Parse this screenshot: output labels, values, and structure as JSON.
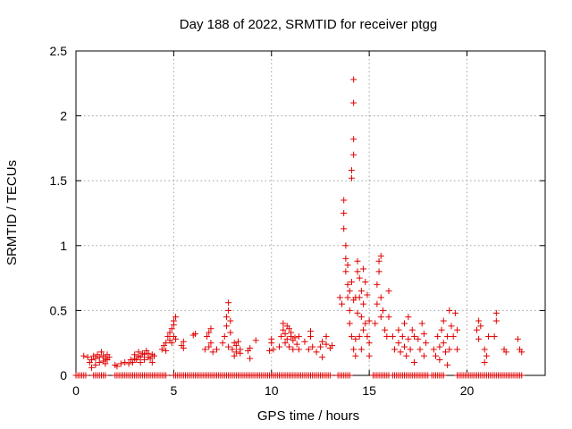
{
  "chart_data": {
    "type": "scatter",
    "title": "Day 188 of 2022, SRMTID for receiver ptgg",
    "xlabel": "GPS time / hours",
    "ylabel": "SRMTID / TECUs",
    "xlim": [
      0,
      24
    ],
    "ylim": [
      0,
      2.5
    ],
    "xticks": [
      0,
      5,
      10,
      15,
      20
    ],
    "yticks": [
      0,
      0.5,
      1,
      1.5,
      2,
      2.5
    ],
    "xtick_labels": [
      "0",
      "5",
      "10",
      "15",
      "20"
    ],
    "ytick_labels": [
      "0",
      "0.5",
      "1",
      "1.5",
      "2",
      "2.5"
    ],
    "grid": true,
    "marker": "+",
    "marker_color": "#e00000",
    "series": [
      {
        "name": "SRMTID",
        "points": [
          [
            0.4,
            0.15
          ],
          [
            0.6,
            0.14
          ],
          [
            0.7,
            0.1
          ],
          [
            0.8,
            0.06
          ],
          [
            0.8,
            0.12
          ],
          [
            0.9,
            0.15
          ],
          [
            1.0,
            0.08
          ],
          [
            1.0,
            0.13
          ],
          [
            1.1,
            0.16
          ],
          [
            1.2,
            0.1
          ],
          [
            1.2,
            0.14
          ],
          [
            1.3,
            0.18
          ],
          [
            1.4,
            0.11
          ],
          [
            1.4,
            0.15
          ],
          [
            1.5,
            0.09
          ],
          [
            1.5,
            0.13
          ],
          [
            1.6,
            0.12
          ],
          [
            1.6,
            0.16
          ],
          [
            1.7,
            0.14
          ],
          [
            2.0,
            0.08
          ],
          [
            2.1,
            0.07
          ],
          [
            2.3,
            0.09
          ],
          [
            2.5,
            0.1
          ],
          [
            2.7,
            0.09
          ],
          [
            2.8,
            0.12
          ],
          [
            2.9,
            0.1
          ],
          [
            3.0,
            0.13
          ],
          [
            3.0,
            0.16
          ],
          [
            3.1,
            0.12
          ],
          [
            3.2,
            0.15
          ],
          [
            3.2,
            0.18
          ],
          [
            3.3,
            0.1
          ],
          [
            3.3,
            0.14
          ],
          [
            3.4,
            0.17
          ],
          [
            3.5,
            0.12
          ],
          [
            3.5,
            0.16
          ],
          [
            3.6,
            0.19
          ],
          [
            3.7,
            0.14
          ],
          [
            3.7,
            0.17
          ],
          [
            3.8,
            0.13
          ],
          [
            3.9,
            0.16
          ],
          [
            3.9,
            0.1
          ],
          [
            4.0,
            0.15
          ],
          [
            4.4,
            0.2
          ],
          [
            4.5,
            0.23
          ],
          [
            4.6,
            0.25
          ],
          [
            4.6,
            0.19
          ],
          [
            4.7,
            0.3
          ],
          [
            4.8,
            0.27
          ],
          [
            4.8,
            0.33
          ],
          [
            4.9,
            0.36
          ],
          [
            4.9,
            0.25
          ],
          [
            5.0,
            0.39
          ],
          [
            5.0,
            0.3
          ],
          [
            5.0,
            0.42
          ],
          [
            5.1,
            0.28
          ],
          [
            5.1,
            0.45
          ],
          [
            5.4,
            0.23
          ],
          [
            5.5,
            0.26
          ],
          [
            5.5,
            0.21
          ],
          [
            6.0,
            0.31
          ],
          [
            6.1,
            0.32
          ],
          [
            6.6,
            0.2
          ],
          [
            6.7,
            0.3
          ],
          [
            6.8,
            0.33
          ],
          [
            6.8,
            0.22
          ],
          [
            6.9,
            0.25
          ],
          [
            6.9,
            0.36
          ],
          [
            7.0,
            0.18
          ],
          [
            7.2,
            0.2
          ],
          [
            7.5,
            0.25
          ],
          [
            7.6,
            0.3
          ],
          [
            7.7,
            0.38
          ],
          [
            7.7,
            0.45
          ],
          [
            7.8,
            0.5
          ],
          [
            7.8,
            0.22
          ],
          [
            7.8,
            0.56
          ],
          [
            7.9,
            0.42
          ],
          [
            7.9,
            0.33
          ],
          [
            8.0,
            0.2
          ],
          [
            8.1,
            0.25
          ],
          [
            8.1,
            0.15
          ],
          [
            8.2,
            0.18
          ],
          [
            8.2,
            0.23
          ],
          [
            8.3,
            0.26
          ],
          [
            8.4,
            0.2
          ],
          [
            8.4,
            0.17
          ],
          [
            8.8,
            0.19
          ],
          [
            8.9,
            0.21
          ],
          [
            8.9,
            0.13
          ],
          [
            9.2,
            0.27
          ],
          [
            9.9,
            0.19
          ],
          [
            10.0,
            0.25
          ],
          [
            10.0,
            0.28
          ],
          [
            10.1,
            0.2
          ],
          [
            10.4,
            0.22
          ],
          [
            10.5,
            0.3
          ],
          [
            10.6,
            0.35
          ],
          [
            10.6,
            0.4
          ],
          [
            10.7,
            0.25
          ],
          [
            10.7,
            0.32
          ],
          [
            10.8,
            0.38
          ],
          [
            10.8,
            0.28
          ],
          [
            10.9,
            0.36
          ],
          [
            10.9,
            0.22
          ],
          [
            11.0,
            0.3
          ],
          [
            11.0,
            0.33
          ],
          [
            11.1,
            0.2
          ],
          [
            11.1,
            0.27
          ],
          [
            11.2,
            0.29
          ],
          [
            11.3,
            0.24
          ],
          [
            11.4,
            0.2
          ],
          [
            11.4,
            0.3
          ],
          [
            11.7,
            0.26
          ],
          [
            11.9,
            0.2
          ],
          [
            12.0,
            0.3
          ],
          [
            12.0,
            0.34
          ],
          [
            12.1,
            0.22
          ],
          [
            12.3,
            0.18
          ],
          [
            12.5,
            0.22
          ],
          [
            12.6,
            0.26
          ],
          [
            12.6,
            0.14
          ],
          [
            12.8,
            0.24
          ],
          [
            12.8,
            0.3
          ],
          [
            13.0,
            0.21
          ],
          [
            13.1,
            0.23
          ],
          [
            13.5,
            0.6
          ],
          [
            13.6,
            0.55
          ],
          [
            13.7,
            1.35
          ],
          [
            13.7,
            1.25
          ],
          [
            13.7,
            1.13
          ],
          [
            13.8,
            1.0
          ],
          [
            13.8,
            0.9
          ],
          [
            13.8,
            0.8
          ],
          [
            13.9,
            0.7
          ],
          [
            13.9,
            0.6
          ],
          [
            13.9,
            0.85
          ],
          [
            14.0,
            0.65
          ],
          [
            14.0,
            0.5
          ],
          [
            14.0,
            0.4
          ],
          [
            14.1,
            1.52
          ],
          [
            14.1,
            1.58
          ],
          [
            14.1,
            0.3
          ],
          [
            14.1,
            0.72
          ],
          [
            14.2,
            1.7
          ],
          [
            14.2,
            1.82
          ],
          [
            14.2,
            2.1
          ],
          [
            14.2,
            2.28
          ],
          [
            14.2,
            0.2
          ],
          [
            14.2,
            0.58
          ],
          [
            14.3,
            0.6
          ],
          [
            14.3,
            0.15
          ],
          [
            14.3,
            0.28
          ],
          [
            14.4,
            0.48
          ],
          [
            14.4,
            0.88
          ],
          [
            14.4,
            0.8
          ],
          [
            14.5,
            0.75
          ],
          [
            14.5,
            0.6
          ],
          [
            14.5,
            0.3
          ],
          [
            14.6,
            0.65
          ],
          [
            14.6,
            0.45
          ],
          [
            14.6,
            0.2
          ],
          [
            14.7,
            0.82
          ],
          [
            14.7,
            0.55
          ],
          [
            14.7,
            0.35
          ],
          [
            14.8,
            0.72
          ],
          [
            14.8,
            0.4
          ],
          [
            14.9,
            0.62
          ],
          [
            14.9,
            0.3
          ],
          [
            15.0,
            0.42
          ],
          [
            15.0,
            0.25
          ],
          [
            15.0,
            0.15
          ],
          [
            15.3,
            0.4
          ],
          [
            15.4,
            0.55
          ],
          [
            15.4,
            0.7
          ],
          [
            15.5,
            0.88
          ],
          [
            15.5,
            0.8
          ],
          [
            15.6,
            0.92
          ],
          [
            15.6,
            0.6
          ],
          [
            15.6,
            0.45
          ],
          [
            15.7,
            0.5
          ],
          [
            15.8,
            0.35
          ],
          [
            15.9,
            0.3
          ],
          [
            16.0,
            0.45
          ],
          [
            16.0,
            0.65
          ],
          [
            16.2,
            0.3
          ],
          [
            16.3,
            0.2
          ],
          [
            16.5,
            0.25
          ],
          [
            16.5,
            0.35
          ],
          [
            16.6,
            0.18
          ],
          [
            16.7,
            0.3
          ],
          [
            16.8,
            0.22
          ],
          [
            16.8,
            0.4
          ],
          [
            16.9,
            0.15
          ],
          [
            17.0,
            0.28
          ],
          [
            17.0,
            0.45
          ],
          [
            17.1,
            0.2
          ],
          [
            17.2,
            0.35
          ],
          [
            17.3,
            0.1
          ],
          [
            17.3,
            0.3
          ],
          [
            17.5,
            0.28
          ],
          [
            17.6,
            0.2
          ],
          [
            17.7,
            0.4
          ],
          [
            17.8,
            0.32
          ],
          [
            17.8,
            0.15
          ],
          [
            17.9,
            0.25
          ],
          [
            18.3,
            0.2
          ],
          [
            18.4,
            0.15
          ],
          [
            18.5,
            0.3
          ],
          [
            18.6,
            0.22
          ],
          [
            18.6,
            0.12
          ],
          [
            18.7,
            0.35
          ],
          [
            18.8,
            0.25
          ],
          [
            18.8,
            0.42
          ],
          [
            18.9,
            0.18
          ],
          [
            19.0,
            0.08
          ],
          [
            19.0,
            0.3
          ],
          [
            19.1,
            0.5
          ],
          [
            19.1,
            0.2
          ],
          [
            19.2,
            0.38
          ],
          [
            19.3,
            0.3
          ],
          [
            19.4,
            0.48
          ],
          [
            19.5,
            0.2
          ],
          [
            19.5,
            0.35
          ],
          [
            20.5,
            0.35
          ],
          [
            20.6,
            0.28
          ],
          [
            20.6,
            0.42
          ],
          [
            20.7,
            0.38
          ],
          [
            20.9,
            0.1
          ],
          [
            20.9,
            0.2
          ],
          [
            21.0,
            0.15
          ],
          [
            21.1,
            0.3
          ],
          [
            21.4,
            0.3
          ],
          [
            21.5,
            0.42
          ],
          [
            21.5,
            0.48
          ],
          [
            21.9,
            0.2
          ],
          [
            22.0,
            0.18
          ],
          [
            22.6,
            0.28
          ],
          [
            22.7,
            0.2
          ],
          [
            22.8,
            0.18
          ]
        ],
        "zero_segments": [
          [
            0.0,
            0.5
          ],
          [
            0.9,
            1.5
          ],
          [
            2.0,
            4.6
          ],
          [
            5.0,
            8.0
          ],
          [
            8.1,
            13.0
          ],
          [
            13.4,
            14.0
          ],
          [
            15.2,
            16.0
          ],
          [
            16.2,
            18.0
          ],
          [
            18.2,
            18.8
          ],
          [
            19.5,
            22.8
          ]
        ]
      }
    ]
  }
}
